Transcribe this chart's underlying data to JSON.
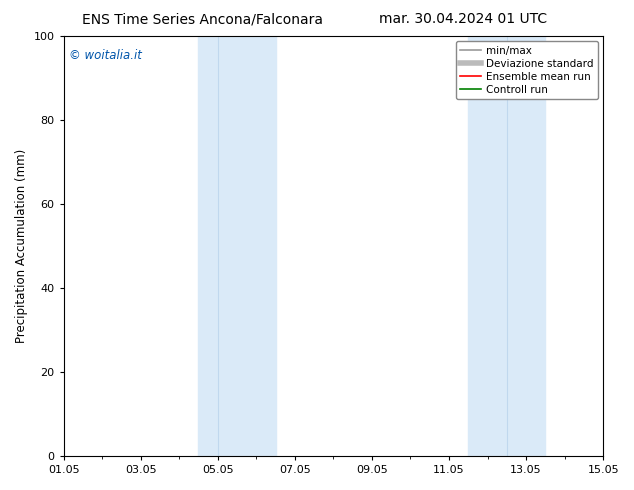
{
  "title_left": "ENS Time Series Ancona/Falconara",
  "title_right": "mar. 30.04.2024 01 UTC",
  "ylabel": "Precipitation Accumulation (mm)",
  "watermark": "© woitalia.it",
  "ylim": [
    0,
    100
  ],
  "yticks": [
    0,
    20,
    40,
    60,
    80,
    100
  ],
  "xtick_labels": [
    "01.05",
    "03.05",
    "05.05",
    "07.05",
    "09.05",
    "11.05",
    "13.05",
    "15.05"
  ],
  "xtick_positions": [
    0,
    2,
    4,
    6,
    8,
    10,
    12,
    14
  ],
  "shaded_bands": [
    {
      "x_start": 3.5,
      "x_end": 4.0,
      "color": "#daeaf8"
    },
    {
      "x_start": 4.0,
      "x_end": 5.5,
      "color": "#daeaf8"
    },
    {
      "x_start": 10.5,
      "x_end": 11.5,
      "color": "#daeaf8"
    },
    {
      "x_start": 11.5,
      "x_end": 12.5,
      "color": "#daeaf8"
    }
  ],
  "band_dividers": [
    4.0,
    11.5
  ],
  "background_color": "#ffffff",
  "plot_bg_color": "#ffffff",
  "legend_entries": [
    {
      "label": "min/max",
      "color": "#999999",
      "lw": 1.2
    },
    {
      "label": "Deviazione standard",
      "color": "#bbbbbb",
      "lw": 4
    },
    {
      "label": "Ensemble mean run",
      "color": "#ff0000",
      "lw": 1.2
    },
    {
      "label": "Controll run",
      "color": "#008000",
      "lw": 1.2
    }
  ],
  "watermark_color": "#0055aa",
  "title_fontsize": 10,
  "tick_fontsize": 8,
  "ylabel_fontsize": 8.5,
  "legend_fontsize": 7.5
}
